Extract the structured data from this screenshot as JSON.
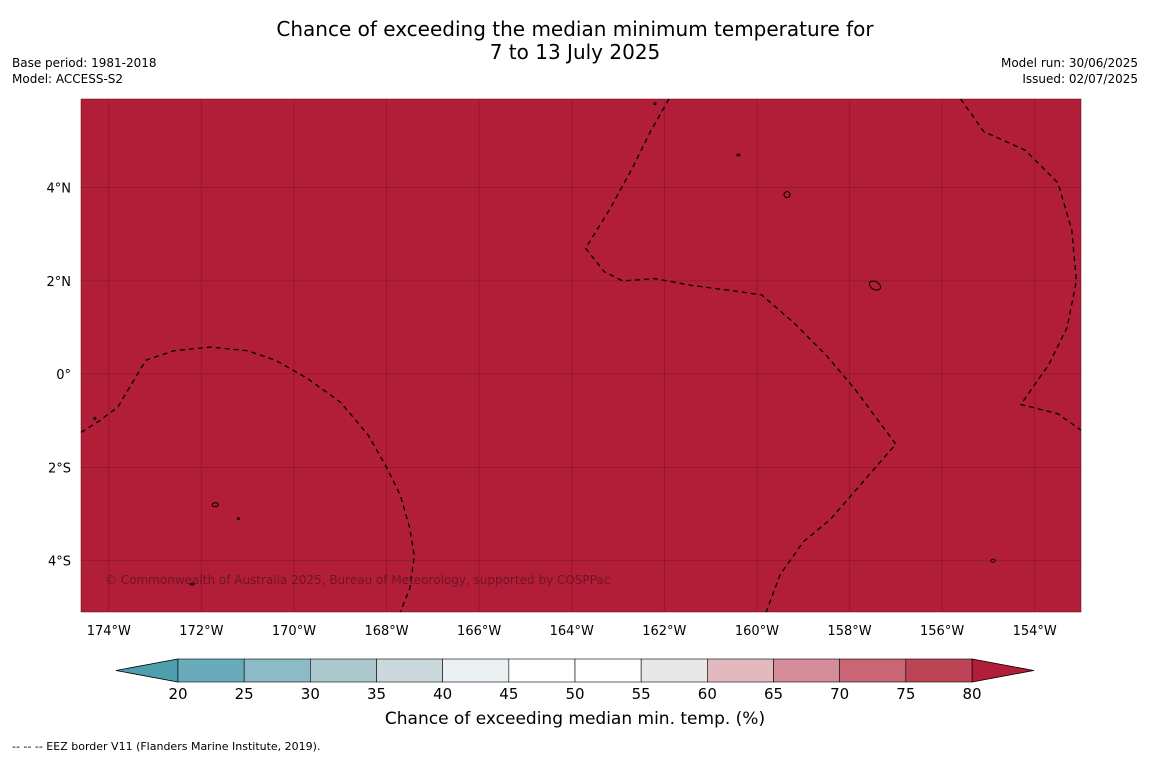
{
  "title": {
    "line1": "Chance of exceeding the median minimum temperature for",
    "line2": "7 to 13 July 2025"
  },
  "meta_left": {
    "base_period": "Base period: 1981-2018",
    "model": "Model: ACCESS-S2"
  },
  "meta_right": {
    "model_run": "Model run: 30/06/2025",
    "issued": "Issued: 02/07/2025"
  },
  "map": {
    "fill_color": "#b21e38",
    "lon_range": [
      -174.6,
      -153.0
    ],
    "lat_range": [
      -5.1,
      5.9
    ],
    "lon_ticks": [
      {
        "value": -174,
        "label": "174°W"
      },
      {
        "value": -172,
        "label": "172°W"
      },
      {
        "value": -170,
        "label": "170°W"
      },
      {
        "value": -168,
        "label": "168°W"
      },
      {
        "value": -166,
        "label": "166°W"
      },
      {
        "value": -164,
        "label": "164°W"
      },
      {
        "value": -162,
        "label": "162°W"
      },
      {
        "value": -160,
        "label": "160°W"
      },
      {
        "value": -158,
        "label": "158°W"
      },
      {
        "value": -156,
        "label": "156°W"
      },
      {
        "value": -154,
        "label": "154°W"
      }
    ],
    "lat_ticks": [
      {
        "value": 4,
        "label": "4°N"
      },
      {
        "value": 2,
        "label": "2°N"
      },
      {
        "value": 0,
        "label": "0°"
      },
      {
        "value": -2,
        "label": "2°S"
      },
      {
        "value": -4,
        "label": "4°S"
      }
    ],
    "copyright": "© Commonwealth of Australia 2025, Bureau of Meteorology, supported by COSPPac",
    "eez_lines": [
      [
        [
          -174.6,
          -1.25
        ],
        [
          -174.2,
          -1.0
        ],
        [
          -173.8,
          -0.7
        ],
        [
          -173.2,
          0.3
        ],
        [
          -172.6,
          0.5
        ],
        [
          -171.8,
          0.58
        ],
        [
          -171.0,
          0.5
        ],
        [
          -170.4,
          0.3
        ],
        [
          -169.7,
          -0.1
        ],
        [
          -169.0,
          -0.6
        ],
        [
          -168.4,
          -1.3
        ],
        [
          -168.0,
          -2.0
        ],
        [
          -167.7,
          -2.6
        ],
        [
          -167.5,
          -3.3
        ],
        [
          -167.4,
          -3.9
        ],
        [
          -167.5,
          -4.6
        ],
        [
          -167.7,
          -5.1
        ]
      ],
      [
        [
          -161.9,
          5.9
        ],
        [
          -162.3,
          5.2
        ],
        [
          -162.7,
          4.4
        ],
        [
          -163.2,
          3.5
        ],
        [
          -163.7,
          2.7
        ],
        [
          -163.3,
          2.2
        ],
        [
          -162.9,
          2.0
        ],
        [
          -162.2,
          2.05
        ],
        [
          -161.4,
          1.9
        ],
        [
          -160.6,
          1.8
        ],
        [
          -159.9,
          1.7
        ],
        [
          -159.2,
          1.1
        ],
        [
          -158.5,
          0.4
        ],
        [
          -157.9,
          -0.3
        ],
        [
          -157.3,
          -1.1
        ],
        [
          -157.0,
          -1.5
        ],
        [
          -157.7,
          -2.3
        ],
        [
          -158.4,
          -3.1
        ],
        [
          -159.0,
          -3.6
        ],
        [
          -159.5,
          -4.3
        ],
        [
          -159.8,
          -5.1
        ]
      ],
      [
        [
          -155.6,
          5.9
        ],
        [
          -155.1,
          5.2
        ],
        [
          -154.2,
          4.8
        ],
        [
          -153.5,
          4.1
        ],
        [
          -153.2,
          3.1
        ],
        [
          -153.1,
          2.0
        ],
        [
          -153.3,
          1.0
        ],
        [
          -153.7,
          0.2
        ],
        [
          -154.3,
          -0.65
        ],
        [
          -153.9,
          -0.75
        ],
        [
          -153.5,
          -0.85
        ],
        [
          -153.0,
          -1.2
        ]
      ]
    ],
    "islands": [
      {
        "lon": -157.45,
        "lat": 1.9,
        "rx": 6,
        "ry": 4,
        "rot": 30
      },
      {
        "lon": -159.35,
        "lat": 3.85,
        "rx": 3,
        "ry": 3,
        "rot": 0
      },
      {
        "lon": -171.7,
        "lat": -2.8,
        "rx": 3,
        "ry": 2,
        "rot": 0
      },
      {
        "lon": -171.2,
        "lat": -3.1,
        "rx": 1,
        "ry": 1,
        "rot": 0
      },
      {
        "lon": -160.4,
        "lat": 4.7,
        "rx": 1.5,
        "ry": 1,
        "rot": 0
      },
      {
        "lon": -172.2,
        "lat": -4.5,
        "rx": 2,
        "ry": 1,
        "rot": 0
      },
      {
        "lon": -154.9,
        "lat": -4.0,
        "rx": 2,
        "ry": 1.5,
        "rot": 0
      },
      {
        "lon": -174.3,
        "lat": -0.95,
        "rx": 1,
        "ry": 1,
        "rot": 0
      },
      {
        "lon": -162.2,
        "lat": 5.8,
        "rx": 1,
        "ry": 1,
        "rot": 0
      }
    ]
  },
  "colorbar": {
    "label": "Chance of exceeding median min. temp. (%)",
    "ticks": [
      "20",
      "25",
      "30",
      "35",
      "40",
      "45",
      "50",
      "55",
      "60",
      "65",
      "70",
      "75",
      "80"
    ],
    "colors": [
      "#6aabbb",
      "#8cbac5",
      "#abc8cd",
      "#cbd9dc",
      "#ebf1f2",
      "#ffffff",
      "#ffffff",
      "#e8e8e8",
      "#e3b9c0",
      "#d58e99",
      "#c96574",
      "#bd4454"
    ],
    "under_color": "#4e9fae",
    "over_color": "#b21e38"
  },
  "footnote": "--  --  -- EEZ border V11 (Flanders Marine Institute, 2019)."
}
